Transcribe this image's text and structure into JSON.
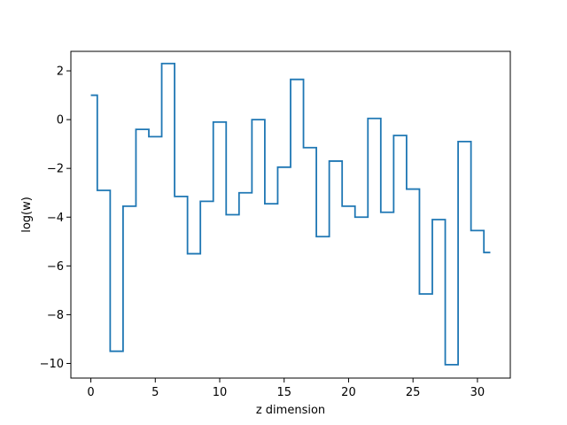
{
  "chart_data": {
    "type": "line",
    "style": "step",
    "title": "",
    "xlabel": "z dimension",
    "ylabel": "log(w)",
    "xlim": [
      -1.55,
      32.55
    ],
    "ylim": [
      -10.6,
      2.8
    ],
    "x_ticks": [
      0,
      5,
      10,
      15,
      20,
      25,
      30
    ],
    "y_ticks": [
      -10,
      -8,
      -6,
      -4,
      -2,
      0,
      2
    ],
    "grid": false,
    "line_color": "#1f77b4",
    "series": [
      {
        "x": [
          0,
          1,
          2,
          3,
          4,
          5,
          6,
          7,
          8,
          9,
          10,
          11,
          12,
          13,
          14,
          15,
          16,
          17,
          18,
          19,
          20,
          21,
          22,
          23,
          24,
          25,
          26,
          27,
          28,
          29,
          30,
          31
        ],
        "values": [
          1.0,
          -2.9,
          -9.5,
          -3.55,
          -0.4,
          -0.7,
          2.3,
          -3.15,
          -5.5,
          -3.35,
          -0.1,
          -3.9,
          -3.0,
          0.0,
          -3.45,
          -1.95,
          1.65,
          -1.15,
          -4.8,
          -1.7,
          -3.55,
          -4.0,
          0.05,
          -3.8,
          -0.65,
          -2.85,
          -7.15,
          -4.1,
          -10.05,
          -0.9,
          -4.55,
          -5.45
        ]
      }
    ]
  }
}
